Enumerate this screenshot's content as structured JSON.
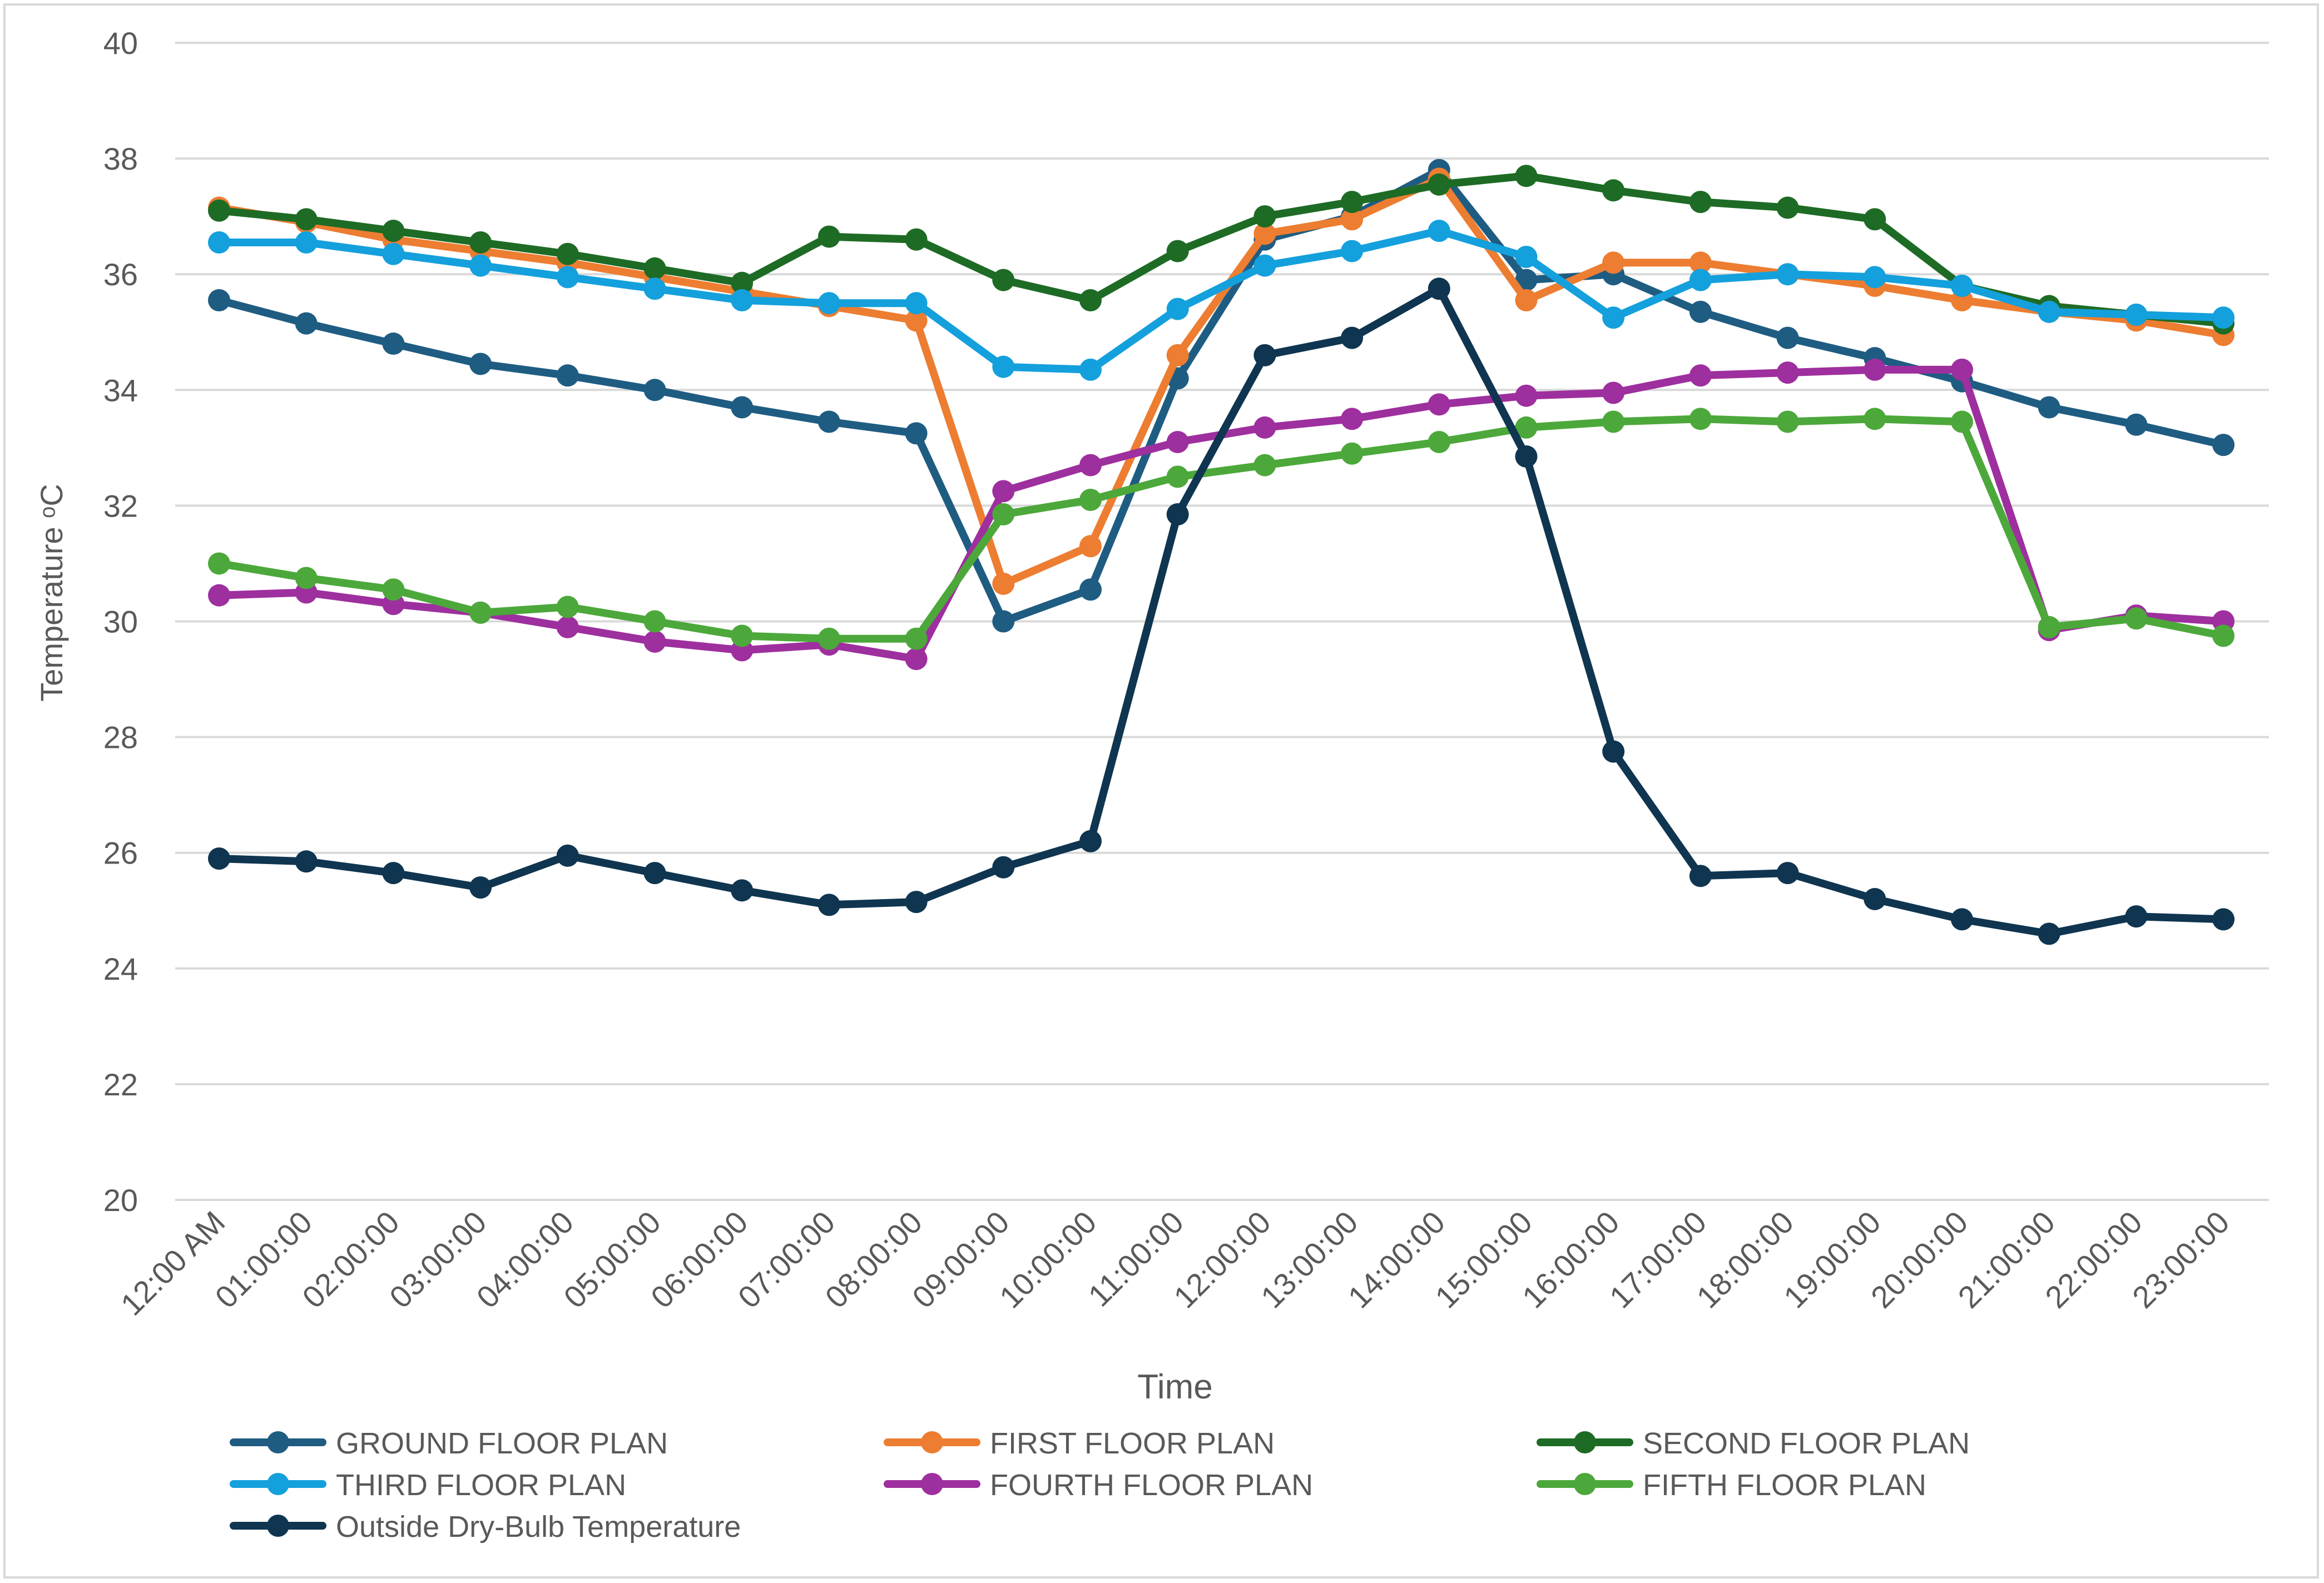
{
  "chart_data": {
    "type": "line",
    "title": "",
    "xlabel": "Time",
    "ylabel": "Temperature ᵒC",
    "ylim": [
      20,
      40
    ],
    "ytick_step": 2,
    "grid": true,
    "legend_position": "bottom",
    "categories": [
      "12:00 AM",
      "01:00:00",
      "02:00:00",
      "03:00:00",
      "04:00:00",
      "05:00:00",
      "06:00:00",
      "07:00:00",
      "08:00:00",
      "09:00:00",
      "10:00:00",
      "11:00:00",
      "12:00:00",
      "13:00:00",
      "14:00:00",
      "15:00:00",
      "16:00:00",
      "17:00:00",
      "18:00:00",
      "19:00:00",
      "20:00:00",
      "21:00:00",
      "22:00:00",
      "23:00:00"
    ],
    "series": [
      {
        "name": "GROUND FLOOR PLAN",
        "color": "#1f5c82",
        "values": [
          35.55,
          35.15,
          34.8,
          34.45,
          34.25,
          34.0,
          33.7,
          33.45,
          33.25,
          30.0,
          30.55,
          34.2,
          36.6,
          37.0,
          37.8,
          35.9,
          36.0,
          35.35,
          34.9,
          34.55,
          34.15,
          33.7,
          33.4,
          33.05
        ]
      },
      {
        "name": "FIRST FLOOR PLAN",
        "color": "#ed7d31",
        "values": [
          37.15,
          36.9,
          36.6,
          36.4,
          36.2,
          35.95,
          35.7,
          35.45,
          35.2,
          30.65,
          31.3,
          34.6,
          36.7,
          36.95,
          37.65,
          35.55,
          36.2,
          36.2,
          36.0,
          35.8,
          35.55,
          35.35,
          35.2,
          34.95
        ]
      },
      {
        "name": "SECOND FLOOR PLAN",
        "color": "#1e6b25",
        "values": [
          37.1,
          36.95,
          36.75,
          36.55,
          36.35,
          36.1,
          35.85,
          36.65,
          36.6,
          35.9,
          35.55,
          36.4,
          37.0,
          37.25,
          37.55,
          37.7,
          37.45,
          37.25,
          37.15,
          36.95,
          35.8,
          35.45,
          35.3,
          35.15
        ]
      },
      {
        "name": "THIRD FLOOR PLAN",
        "color": "#14a0dc",
        "values": [
          36.55,
          36.55,
          36.35,
          36.15,
          35.95,
          35.75,
          35.55,
          35.5,
          35.5,
          34.4,
          34.35,
          35.4,
          36.15,
          36.4,
          36.75,
          36.3,
          35.25,
          35.9,
          36.0,
          35.95,
          35.8,
          35.35,
          35.3,
          35.25
        ]
      },
      {
        "name": "FOURTH FLOOR PLAN",
        "color": "#9e2f9e",
        "values": [
          30.45,
          30.5,
          30.3,
          30.15,
          29.9,
          29.65,
          29.5,
          29.6,
          29.35,
          32.25,
          32.7,
          33.1,
          33.35,
          33.5,
          33.75,
          33.9,
          33.95,
          34.25,
          34.3,
          34.35,
          34.35,
          29.85,
          30.1,
          30.0
        ]
      },
      {
        "name": "FIFTH FLOOR PLAN",
        "color": "#4ca83a",
        "values": [
          31.0,
          30.75,
          30.55,
          30.15,
          30.25,
          30.0,
          29.75,
          29.7,
          29.7,
          31.85,
          32.1,
          32.5,
          32.7,
          32.9,
          33.1,
          33.35,
          33.45,
          33.5,
          33.45,
          33.5,
          33.45,
          29.9,
          30.05,
          29.75
        ]
      },
      {
        "name": "Outside Dry-Bulb Temperature",
        "color": "#0f3550",
        "values": [
          25.9,
          25.85,
          25.65,
          25.4,
          25.95,
          25.65,
          25.35,
          25.1,
          25.15,
          25.75,
          26.2,
          31.85,
          34.6,
          34.9,
          35.75,
          32.85,
          27.75,
          25.6,
          25.65,
          25.2,
          24.85,
          24.6,
          24.9,
          24.85
        ]
      }
    ]
  }
}
